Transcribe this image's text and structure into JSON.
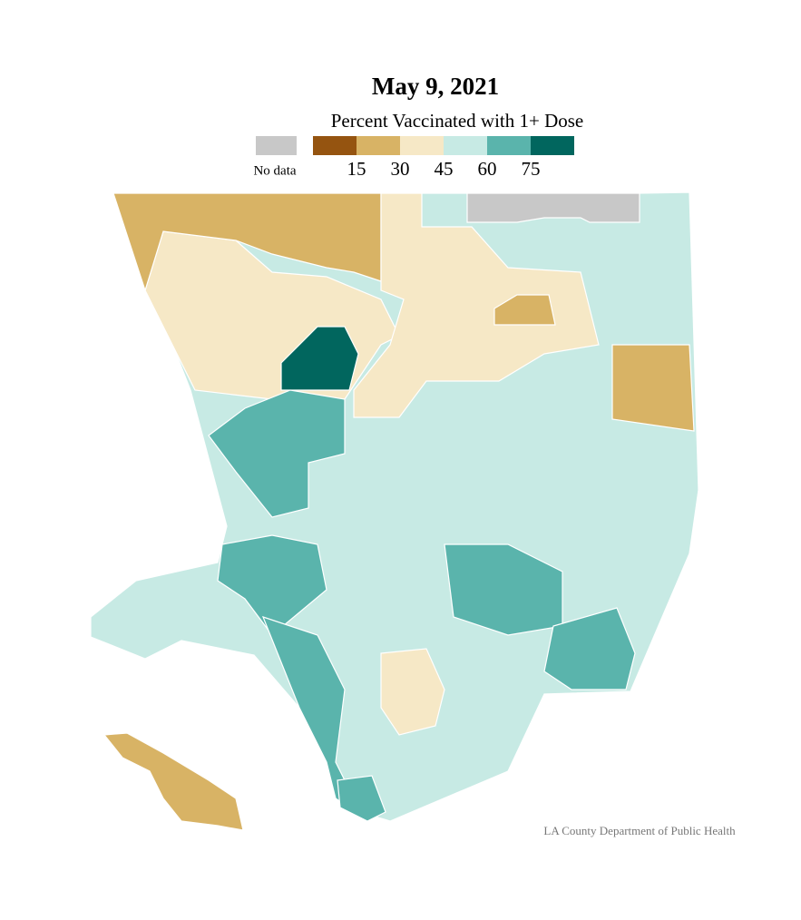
{
  "title": "May 9, 2021",
  "legend": {
    "title": "Percent Vaccinated with 1+ Dose",
    "no_data_label": "No data",
    "no_data_color": "#c8c8c8",
    "colors": [
      "#955410",
      "#d8b365",
      "#f6e8c6",
      "#c7eae4",
      "#5ab4ac",
      "#01665e"
    ],
    "ticks": [
      15,
      30,
      45,
      60,
      75
    ]
  },
  "source": "LA County Department of Public Health"
}
